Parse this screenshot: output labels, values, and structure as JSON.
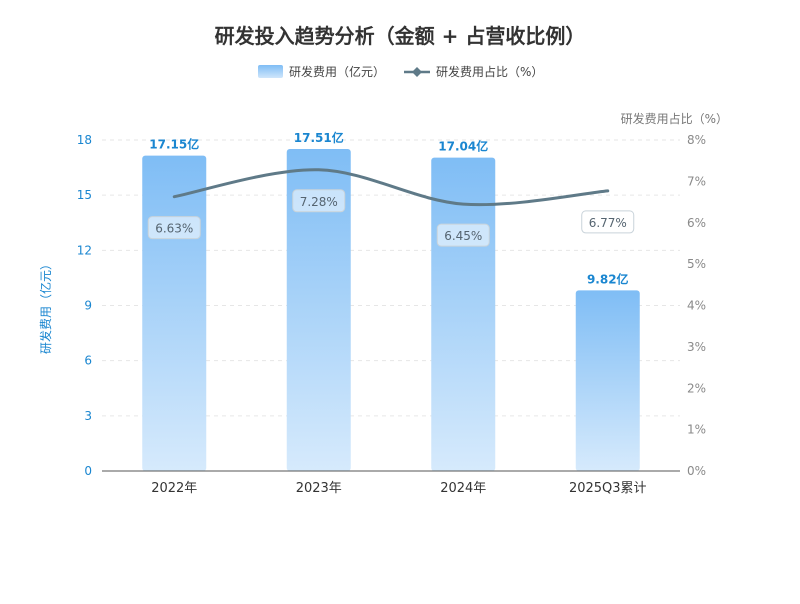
{
  "chart_data": {
    "type": "bar+line",
    "title": "研发投入趋势分析（金额 + 占营收比例）",
    "categories": [
      "2022年",
      "2023年",
      "2024年",
      "2025Q3累计"
    ],
    "series": [
      {
        "name": "研发费用（亿元）",
        "type": "bar",
        "axis": "left",
        "values": [
          17.15,
          17.51,
          17.04,
          9.82
        ],
        "labels": [
          "17.15亿",
          "17.51亿",
          "17.04亿",
          "9.82亿"
        ]
      },
      {
        "name": "研发费用占比（%）",
        "type": "line",
        "axis": "right",
        "values": [
          6.63,
          7.28,
          6.45,
          6.77
        ],
        "labels": [
          "6.63%",
          "7.28%",
          "6.45%",
          "6.77%"
        ]
      }
    ],
    "y_left": {
      "label": "研发费用（亿元）",
      "ylim": [
        0,
        18
      ],
      "ticks": [
        "0",
        "3",
        "6",
        "9",
        "12",
        "15",
        "18"
      ]
    },
    "y_right": {
      "label": "研发费用占比（%）",
      "ylim": [
        0,
        8
      ],
      "ticks": [
        "0%",
        "1%",
        "2%",
        "3%",
        "4%",
        "5%",
        "6%",
        "7%",
        "8%"
      ]
    },
    "legend_position": "top-center",
    "grid": true,
    "colors": {
      "bar_top": "#7fbdf5",
      "bar_bottom": "#d6eafc",
      "line": "#5f7a88",
      "left_axis": "#1a86d0",
      "right_axis": "#8a8a8a",
      "bar_label": "#1a86d0",
      "title": "#333333"
    }
  }
}
